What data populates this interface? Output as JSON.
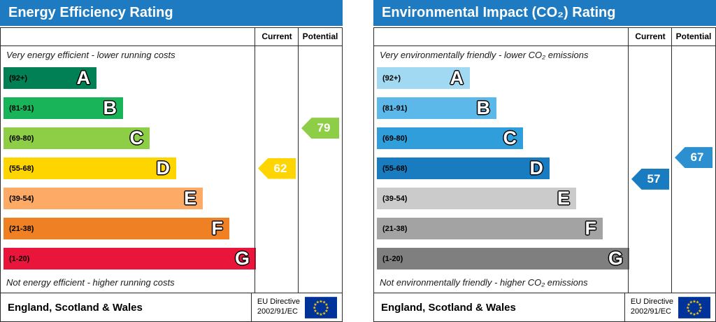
{
  "colors": {
    "header_blue": "#1e7bc1",
    "eu_flag_bg": "#003399",
    "eu_flag_stars": "#ffcc00"
  },
  "panels": [
    {
      "title": "Energy Efficiency Rating",
      "header_color": "#1e7bc1",
      "columns": {
        "current": "Current",
        "potential": "Potential"
      },
      "top_note": "Very energy efficient - lower running costs",
      "bottom_note": "Not energy efficient - higher running costs",
      "bands": [
        {
          "letter": "A",
          "range": "(92+)",
          "min": 92,
          "max": 100,
          "color": "#008054"
        },
        {
          "letter": "B",
          "range": "(81-91)",
          "min": 81,
          "max": 91,
          "color": "#19b459"
        },
        {
          "letter": "C",
          "range": "(69-80)",
          "min": 69,
          "max": 80,
          "color": "#8dce46"
        },
        {
          "letter": "D",
          "range": "(55-68)",
          "min": 55,
          "max": 68,
          "color": "#ffd500"
        },
        {
          "letter": "E",
          "range": "(39-54)",
          "min": 39,
          "max": 54,
          "color": "#fcaa65"
        },
        {
          "letter": "F",
          "range": "(21-38)",
          "min": 21,
          "max": 38,
          "color": "#ef8023"
        },
        {
          "letter": "G",
          "range": "(1-20)",
          "min": 1,
          "max": 20,
          "color": "#e9153b"
        }
      ],
      "current": {
        "value": 62,
        "color": "#ffd500"
      },
      "potential": {
        "value": 79,
        "color": "#8dce46"
      },
      "footer": {
        "region": "England, Scotland & Wales",
        "directive_line1": "EU Directive",
        "directive_line2": "2002/91/EC"
      }
    },
    {
      "title": "Environmental Impact (CO₂) Rating",
      "header_color": "#1e7bc1",
      "columns": {
        "current": "Current",
        "potential": "Potential"
      },
      "top_note": "Very environmentally friendly - lower CO₂ emissions",
      "bottom_note": "Not environmentally friendly - higher CO₂ emissions",
      "bands": [
        {
          "letter": "A",
          "range": "(92+)",
          "min": 92,
          "max": 100,
          "color": "#a2d9f2"
        },
        {
          "letter": "B",
          "range": "(81-91)",
          "min": 81,
          "max": 91,
          "color": "#5cb8e9"
        },
        {
          "letter": "C",
          "range": "(69-80)",
          "min": 69,
          "max": 80,
          "color": "#2f9edb"
        },
        {
          "letter": "D",
          "range": "(55-68)",
          "min": 55,
          "max": 68,
          "color": "#1a7cc0"
        },
        {
          "letter": "E",
          "range": "(39-54)",
          "min": 39,
          "max": 54,
          "color": "#cbcbcb"
        },
        {
          "letter": "F",
          "range": "(21-38)",
          "min": 21,
          "max": 38,
          "color": "#a3a3a3"
        },
        {
          "letter": "G",
          "range": "(1-20)",
          "min": 1,
          "max": 20,
          "color": "#7f7f7f"
        }
      ],
      "current": {
        "value": 57,
        "color": "#1a7cc0"
      },
      "potential": {
        "value": 67,
        "color": "#2b8fd0"
      },
      "footer": {
        "region": "England, Scotland & Wales",
        "directive_line1": "EU Directive",
        "directive_line2": "2002/91/EC"
      }
    }
  ],
  "chart_data": [
    {
      "type": "bar",
      "subtype": "epc-rating-scale",
      "title": "Energy Efficiency Rating",
      "categories": [
        "A (92+)",
        "B (81-91)",
        "C (69-80)",
        "D (55-68)",
        "E (39-54)",
        "F (21-38)",
        "G (1-20)"
      ],
      "band_colors": [
        "#008054",
        "#19b459",
        "#8dce46",
        "#ffd500",
        "#fcaa65",
        "#ef8023",
        "#e9153b"
      ],
      "series": [
        {
          "name": "Current",
          "values": [
            62
          ],
          "band": "D"
        },
        {
          "name": "Potential",
          "values": [
            79
          ],
          "band": "C"
        }
      ],
      "scale_range": [
        1,
        100
      ],
      "annotations": [
        "Very energy efficient - lower running costs",
        "Not energy efficient - higher running costs"
      ],
      "footer": "England, Scotland & Wales — EU Directive 2002/91/EC"
    },
    {
      "type": "bar",
      "subtype": "epc-rating-scale",
      "title": "Environmental Impact (CO₂) Rating",
      "categories": [
        "A (92+)",
        "B (81-91)",
        "C (69-80)",
        "D (55-68)",
        "E (39-54)",
        "F (21-38)",
        "G (1-20)"
      ],
      "band_colors": [
        "#a2d9f2",
        "#5cb8e9",
        "#2f9edb",
        "#1a7cc0",
        "#cbcbcb",
        "#a3a3a3",
        "#7f7f7f"
      ],
      "series": [
        {
          "name": "Current",
          "values": [
            57
          ],
          "band": "D"
        },
        {
          "name": "Potential",
          "values": [
            67
          ],
          "band": "D"
        }
      ],
      "scale_range": [
        1,
        100
      ],
      "annotations": [
        "Very environmentally friendly - lower CO₂ emissions",
        "Not environmentally friendly - higher CO₂ emissions"
      ],
      "footer": "England, Scotland & Wales — EU Directive 2002/91/EC"
    }
  ]
}
